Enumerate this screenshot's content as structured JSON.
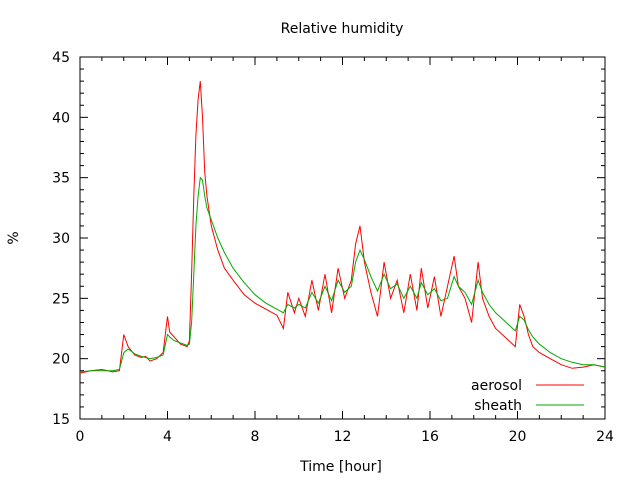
{
  "chart_data": {
    "type": "line",
    "title": "Relative humidity",
    "xlabel": "Time [hour]",
    "ylabel": "%",
    "xlim": [
      0,
      24
    ],
    "ylim": [
      15,
      45
    ],
    "xticks": [
      0,
      4,
      8,
      12,
      16,
      20,
      24
    ],
    "yticks": [
      15,
      20,
      25,
      30,
      35,
      40,
      45
    ],
    "grid": false,
    "legend_position": "bottom-right",
    "series": [
      {
        "name": "aerosol",
        "color": "#ff0000",
        "x": [
          0,
          0.5,
          1.0,
          1.5,
          1.8,
          2.0,
          2.2,
          2.5,
          2.8,
          3.0,
          3.2,
          3.5,
          3.8,
          4.0,
          4.1,
          4.3,
          4.6,
          4.9,
          5.0,
          5.1,
          5.2,
          5.3,
          5.4,
          5.5,
          5.6,
          5.7,
          5.8,
          6.0,
          6.3,
          6.6,
          7.0,
          7.5,
          8.0,
          8.5,
          9.0,
          9.3,
          9.5,
          9.8,
          10.0,
          10.3,
          10.6,
          10.9,
          11.2,
          11.5,
          11.8,
          12.1,
          12.4,
          12.6,
          12.8,
          13.0,
          13.3,
          13.6,
          13.9,
          14.2,
          14.5,
          14.8,
          15.1,
          15.4,
          15.6,
          15.9,
          16.2,
          16.5,
          16.8,
          17.1,
          17.3,
          17.6,
          17.9,
          18.2,
          18.4,
          18.7,
          19.0,
          19.3,
          19.6,
          19.9,
          20.1,
          20.3,
          20.5,
          20.7,
          21.0,
          21.5,
          22.0,
          22.5,
          23.0,
          23.5,
          24.0
        ],
        "values": [
          18.8,
          19.0,
          19.1,
          18.9,
          19.0,
          22.0,
          21.0,
          20.3,
          20.1,
          20.2,
          19.8,
          20.0,
          20.5,
          23.5,
          22.2,
          21.8,
          21.2,
          21.0,
          21.5,
          27.0,
          33.5,
          38.5,
          41.5,
          43.0,
          40.0,
          35.5,
          33.5,
          31.0,
          29.0,
          27.5,
          26.5,
          25.3,
          24.6,
          24.1,
          23.6,
          22.5,
          25.5,
          23.8,
          25.0,
          23.5,
          26.5,
          24.0,
          27.0,
          23.8,
          27.5,
          25.0,
          26.5,
          29.5,
          31.0,
          28.0,
          25.5,
          23.5,
          28.0,
          25.0,
          26.5,
          23.8,
          27.0,
          24.0,
          27.5,
          24.2,
          26.8,
          23.5,
          26.0,
          28.5,
          26.0,
          25.0,
          23.0,
          28.0,
          25.0,
          23.5,
          22.5,
          22.0,
          21.5,
          21.0,
          24.5,
          23.5,
          22.0,
          21.0,
          20.5,
          20.0,
          19.5,
          19.2,
          19.3,
          19.5,
          19.3
        ]
      },
      {
        "name": "sheath",
        "color": "#00aa00",
        "x": [
          0,
          0.5,
          1.0,
          1.5,
          1.8,
          2.0,
          2.2,
          2.5,
          2.8,
          3.0,
          3.2,
          3.5,
          3.8,
          4.0,
          4.1,
          4.3,
          4.6,
          4.9,
          5.0,
          5.1,
          5.2,
          5.3,
          5.4,
          5.5,
          5.6,
          5.7,
          5.8,
          6.0,
          6.3,
          6.6,
          7.0,
          7.5,
          8.0,
          8.5,
          9.0,
          9.3,
          9.5,
          9.8,
          10.0,
          10.3,
          10.6,
          10.9,
          11.2,
          11.5,
          11.8,
          12.1,
          12.4,
          12.6,
          12.8,
          13.0,
          13.3,
          13.6,
          13.9,
          14.2,
          14.5,
          14.8,
          15.1,
          15.4,
          15.6,
          15.9,
          16.2,
          16.5,
          16.8,
          17.1,
          17.3,
          17.6,
          17.9,
          18.2,
          18.4,
          18.7,
          19.0,
          19.3,
          19.6,
          19.9,
          20.1,
          20.3,
          20.5,
          20.7,
          21.0,
          21.5,
          22.0,
          22.5,
          23.0,
          23.5,
          24.0
        ],
        "values": [
          18.9,
          19.0,
          19.0,
          19.0,
          19.1,
          20.5,
          20.8,
          20.4,
          20.2,
          20.1,
          20.0,
          20.1,
          20.3,
          22.0,
          21.8,
          21.5,
          21.3,
          21.1,
          21.2,
          23.0,
          27.0,
          31.0,
          33.5,
          35.0,
          34.8,
          33.5,
          32.5,
          31.5,
          30.0,
          28.8,
          27.5,
          26.3,
          25.3,
          24.6,
          24.1,
          23.8,
          24.5,
          24.2,
          24.5,
          24.2,
          25.5,
          24.6,
          26.0,
          24.8,
          26.5,
          25.5,
          26.0,
          28.0,
          29.0,
          28.2,
          26.8,
          25.6,
          27.0,
          25.8,
          26.2,
          25.0,
          26.0,
          25.0,
          26.3,
          25.3,
          25.8,
          24.8,
          25.0,
          26.8,
          26.0,
          25.5,
          24.5,
          26.5,
          25.5,
          24.5,
          23.8,
          23.3,
          22.8,
          22.3,
          23.5,
          23.2,
          22.4,
          21.8,
          21.2,
          20.5,
          20.0,
          19.7,
          19.5,
          19.5,
          19.3
        ]
      }
    ]
  }
}
